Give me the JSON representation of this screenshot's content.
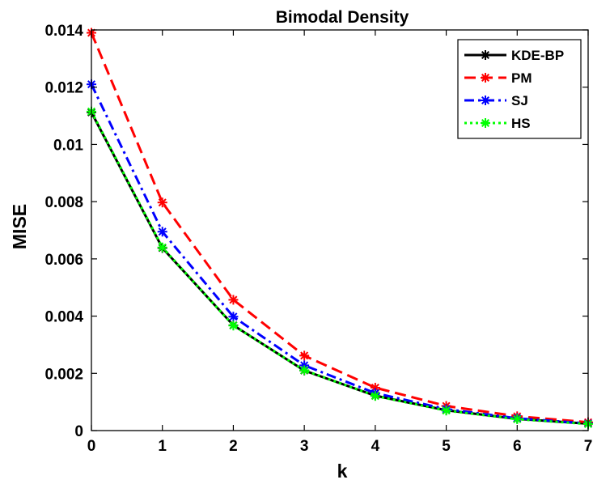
{
  "chart_data": {
    "type": "line",
    "title": "Bimodal Density",
    "xlabel": "k",
    "ylabel": "MISE",
    "xlim": [
      0,
      7
    ],
    "ylim": [
      0,
      0.014
    ],
    "xticks": [
      0,
      1,
      2,
      3,
      4,
      5,
      6,
      7
    ],
    "xtick_labels": [
      "0",
      "1",
      "2",
      "3",
      "4",
      "5",
      "6",
      "7"
    ],
    "yticks": [
      0,
      0.002,
      0.004,
      0.006,
      0.008,
      0.01,
      0.012,
      0.014
    ],
    "ytick_labels": [
      "0",
      "0.002",
      "0.004",
      "0.006",
      "0.008",
      "0.01",
      "0.012",
      "0.014"
    ],
    "grid": false,
    "legend_position": "top-right",
    "x": [
      0,
      1,
      2,
      3,
      4,
      5,
      6,
      7
    ],
    "series": [
      {
        "name": "KDE-BP",
        "color": "#000000",
        "style": "solid",
        "marker": "asterisk",
        "values": [
          0.01112,
          0.00638,
          0.00368,
          0.0021,
          0.00122,
          0.00071,
          0.00041,
          0.00024
        ]
      },
      {
        "name": "PM",
        "color": "#ff0000",
        "style": "dashed",
        "marker": "asterisk",
        "values": [
          0.0139,
          0.00797,
          0.00457,
          0.00262,
          0.0015,
          0.00086,
          0.0005,
          0.00029
        ]
      },
      {
        "name": "SJ",
        "color": "#0000ff",
        "style": "dashdot",
        "marker": "asterisk",
        "values": [
          0.0121,
          0.00695,
          0.00398,
          0.00228,
          0.00131,
          0.00075,
          0.00043,
          0.00025
        ]
      },
      {
        "name": "HS",
        "color": "#00ff00",
        "style": "dotted",
        "marker": "asterisk",
        "values": [
          0.01115,
          0.0064,
          0.00367,
          0.00211,
          0.00121,
          0.0007,
          0.0004,
          0.00023
        ]
      }
    ]
  }
}
